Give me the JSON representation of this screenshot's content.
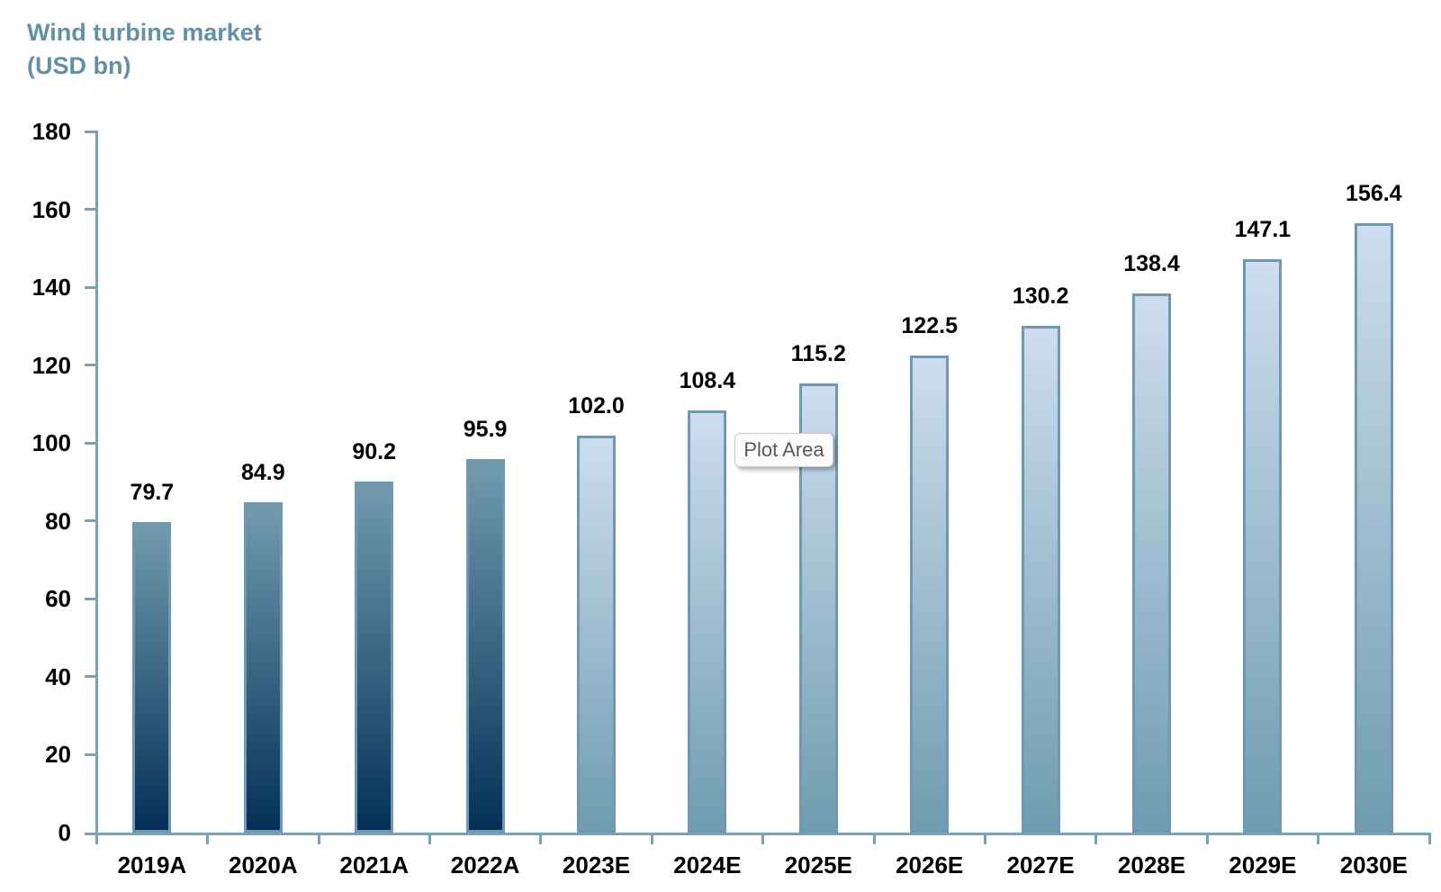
{
  "title": {
    "line1": "Wind turbine market",
    "line2": "(USD bn)"
  },
  "tooltip": {
    "label": "Plot Area"
  },
  "chart_data": {
    "type": "bar",
    "title": "Wind turbine market (USD bn)",
    "xlabel": "",
    "ylabel": "",
    "categories": [
      "2019A",
      "2020A",
      "2021A",
      "2022A",
      "2023E",
      "2024E",
      "2025E",
      "2026E",
      "2027E",
      "2028E",
      "2029E",
      "2030E"
    ],
    "values": [
      79.7,
      84.9,
      90.2,
      95.9,
      102.0,
      108.4,
      115.2,
      122.5,
      130.2,
      138.4,
      147.1,
      156.4
    ],
    "labels": [
      "79.7",
      "84.9",
      "90.2",
      "95.9",
      "102.0",
      "108.4",
      "115.2",
      "122.5",
      "130.2",
      "138.4",
      "147.1",
      "156.4"
    ],
    "series_note": "Categories ending in A are actuals (dark gradient bars); E are estimates (light gradient bars)",
    "ylim": [
      0,
      180
    ],
    "ytick_interval": 20,
    "yticks": [
      0,
      20,
      40,
      60,
      80,
      100,
      120,
      140,
      160,
      180
    ],
    "grid": false,
    "legend": false
  },
  "colors": {
    "background": "#ffffff",
    "title_text": "#6191a7",
    "axis": "#7ba1b5",
    "label_text": "#000000",
    "bar_actual_top": "#729bae",
    "bar_actual_bottom": "#043058",
    "bar_estimate_top": "#cdddef",
    "bar_estimate_bottom": "#6f9cb0",
    "bar_border": "#6f99b1",
    "tooltip_bg": "#fcfcfc",
    "tooltip_border": "#cccccc",
    "tooltip_text": "#595959"
  }
}
